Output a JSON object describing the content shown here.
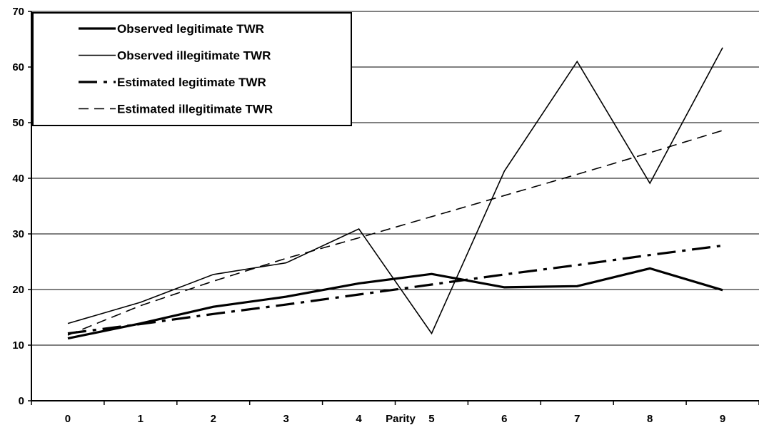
{
  "chart_data": {
    "type": "line",
    "title": "",
    "xlabel": "Parity",
    "ylabel": "",
    "categories": [
      "0",
      "1",
      "2",
      "3",
      "4",
      "5",
      "6",
      "7",
      "8",
      "9"
    ],
    "ylim": [
      0,
      70
    ],
    "yticks": [
      0,
      10,
      20,
      30,
      40,
      50,
      60,
      70
    ],
    "grid": "horizontal",
    "legend_position": "top-left",
    "series": [
      {
        "name": "Observed legitimate TWR",
        "style": "thick-solid",
        "values": [
          11.2,
          13.9,
          16.9,
          18.7,
          21.1,
          22.8,
          20.4,
          20.6,
          23.8,
          19.9
        ]
      },
      {
        "name": "Observed illegitimate TWR",
        "style": "thin-solid",
        "values": [
          13.9,
          17.7,
          22.7,
          24.8,
          30.9,
          12.1,
          41.3,
          61.0,
          39.1,
          63.5
        ]
      },
      {
        "name": "Estimated legitimate TWR",
        "style": "thick-dashdot",
        "values": [
          12.1,
          13.8,
          15.6,
          17.3,
          19.1,
          20.9,
          22.7,
          24.4,
          26.2,
          27.9
        ]
      },
      {
        "name": "Estimated illegitimate TWR",
        "style": "thin-dashed",
        "values": [
          11.8,
          17.1,
          21.5,
          25.6,
          29.3,
          33.1,
          36.9,
          40.7,
          44.6,
          48.6
        ]
      }
    ]
  }
}
